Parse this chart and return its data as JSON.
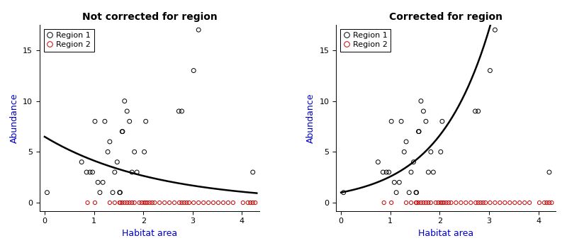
{
  "title_left": "Not corrected for region",
  "title_right": "Corrected for region",
  "xlabel": "Habitat area",
  "ylabel": "Abundance",
  "title_color": "#000000",
  "axis_label_color": "#0000CC",
  "xlim": [
    -0.1,
    4.35
  ],
  "ylim": [
    -0.8,
    17.5
  ],
  "yticks": [
    0,
    5,
    10,
    15
  ],
  "xticks": [
    0,
    1,
    2,
    3,
    4
  ],
  "region1_x": [
    0.05,
    0.75,
    0.85,
    0.92,
    0.97,
    1.02,
    1.08,
    1.12,
    1.18,
    1.22,
    1.28,
    1.32,
    1.38,
    1.42,
    1.47,
    1.52,
    1.53,
    1.57,
    1.58,
    1.62,
    1.67,
    1.72,
    1.77,
    1.82,
    1.87,
    2.02,
    2.05,
    2.72,
    2.78,
    3.02,
    3.12,
    4.22
  ],
  "region1_y": [
    1,
    4,
    3,
    3,
    3,
    8,
    2,
    1,
    2,
    8,
    5,
    6,
    1,
    3,
    4,
    1,
    1,
    7,
    7,
    10,
    9,
    8,
    3,
    5,
    3,
    5,
    8,
    9,
    9,
    13,
    17,
    3
  ],
  "region2_x": [
    0.87,
    1.02,
    1.32,
    1.42,
    1.52,
    1.53,
    1.57,
    1.62,
    1.67,
    1.72,
    1.77,
    1.82,
    1.92,
    1.97,
    2.02,
    2.05,
    2.08,
    2.13,
    2.18,
    2.23,
    2.33,
    2.43,
    2.53,
    2.63,
    2.73,
    2.78,
    2.83,
    2.88,
    2.93,
    3.02,
    3.12,
    3.22,
    3.32,
    3.42,
    3.52,
    3.62,
    3.72,
    3.82,
    4.02,
    4.12,
    4.17,
    4.22,
    4.27
  ],
  "region2_y": [
    0,
    0,
    0,
    0,
    0,
    0,
    0,
    0,
    0,
    0,
    0,
    0,
    0,
    0,
    0,
    0,
    0,
    0,
    0,
    0,
    0,
    0,
    0,
    0,
    0,
    0,
    0,
    0,
    0,
    0,
    0,
    0,
    0,
    0,
    0,
    0,
    0,
    0,
    0,
    0,
    0,
    0,
    0
  ],
  "curve1_intercept": 1.87,
  "curve1_slope": -0.45,
  "curve2_intercept": 0.0,
  "curve2_slope": 0.945,
  "region1_color": "#000000",
  "region2_color": "#CC0000",
  "curve_color": "#000000",
  "bg_color": "#ffffff",
  "legend_fontsize": 8,
  "title_fontsize": 10,
  "axis_label_fontsize": 9,
  "tick_fontsize": 8
}
